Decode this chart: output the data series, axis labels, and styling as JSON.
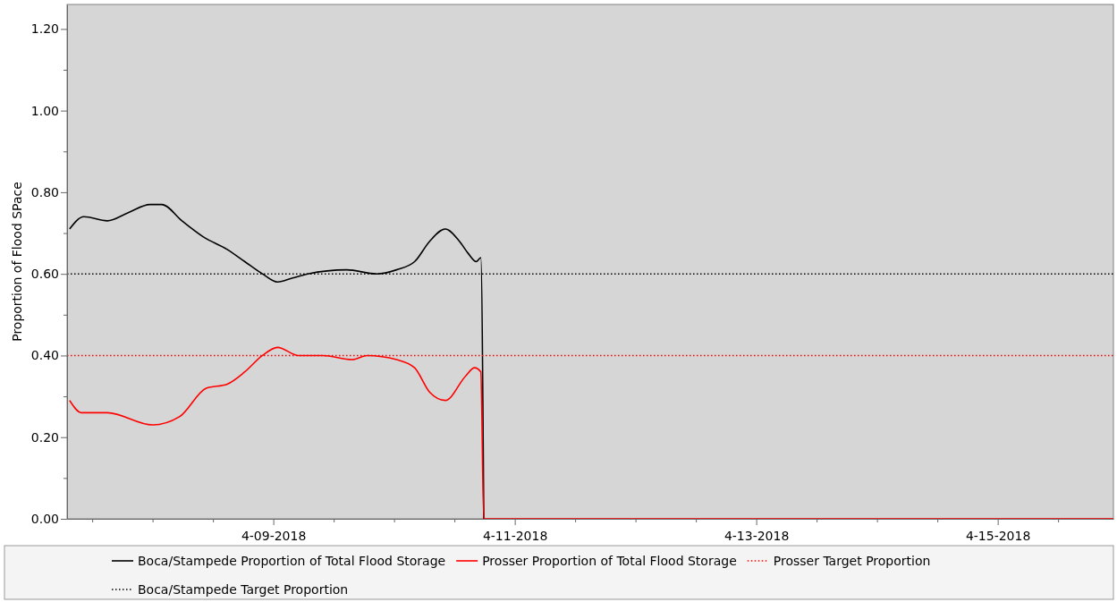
{
  "chart_data": {
    "type": "line",
    "ylabel": "Proportion of Flood SPace",
    "xlim": [
      "2018-04-07T07:00",
      "2018-04-15T23:00"
    ],
    "xticks": [
      {
        "value": "2018-04-07T12:00",
        "label": null
      },
      {
        "value": "2018-04-08T00:00",
        "label": null
      },
      {
        "value": "2018-04-08T12:00",
        "label": null
      },
      {
        "value": "2018-04-09T00:00",
        "label": "4-09-2018"
      },
      {
        "value": "2018-04-09T12:00",
        "label": null
      },
      {
        "value": "2018-04-10T00:00",
        "label": null
      },
      {
        "value": "2018-04-10T12:00",
        "label": null
      },
      {
        "value": "2018-04-11T00:00",
        "label": "4-11-2018"
      },
      {
        "value": "2018-04-11T12:00",
        "label": null
      },
      {
        "value": "2018-04-12T00:00",
        "label": null
      },
      {
        "value": "2018-04-12T12:00",
        "label": null
      },
      {
        "value": "2018-04-13T00:00",
        "label": "4-13-2018"
      },
      {
        "value": "2018-04-13T12:00",
        "label": null
      },
      {
        "value": "2018-04-14T00:00",
        "label": null
      },
      {
        "value": "2018-04-14T12:00",
        "label": null
      },
      {
        "value": "2018-04-15T00:00",
        "label": "4-15-2018"
      },
      {
        "value": "2018-04-15T12:00",
        "label": null
      }
    ],
    "ylim": [
      0,
      1.26
    ],
    "yticks": [
      {
        "value": 0,
        "label": "0.00"
      },
      {
        "value": 0.1,
        "label": null
      },
      {
        "value": 0.2,
        "label": "0.20"
      },
      {
        "value": 0.3,
        "label": null
      },
      {
        "value": 0.4,
        "label": "0.40"
      },
      {
        "value": 0.5,
        "label": null
      },
      {
        "value": 0.6,
        "label": "0.60"
      },
      {
        "value": 0.7,
        "label": null
      },
      {
        "value": 0.8,
        "label": "0.80"
      },
      {
        "value": 0.9,
        "label": null
      },
      {
        "value": 1.0,
        "label": "1.00"
      },
      {
        "value": 1.1,
        "label": null
      },
      {
        "value": 1.2,
        "label": "1.20"
      }
    ],
    "grid": false,
    "legend": "bottom",
    "marker": "none",
    "series": [
      {
        "name": "Boca/Stampede Proportion of Total Flood Storage",
        "color": "#000000",
        "line_style": "solid",
        "x": [
          "2018-04-07T07:30",
          "2018-04-07T10:20",
          "2018-04-07T15:00",
          "2018-04-07T19:10",
          "2018-04-07T23:30",
          "2018-04-08T01:50",
          "2018-04-08T05:50",
          "2018-04-08T10:10",
          "2018-04-08T14:50",
          "2018-04-08T18:20",
          "2018-04-08T21:50",
          "2018-04-09T00:50",
          "2018-04-09T03:50",
          "2018-04-09T06:50",
          "2018-04-09T14:35",
          "2018-04-09T20:30",
          "2018-04-10T00:30",
          "2018-04-10T04:05",
          "2018-04-10T07:05",
          "2018-04-10T10:10",
          "2018-04-10T13:00",
          "2018-04-10T14:45",
          "2018-04-10T16:20",
          "2018-04-10T17:15",
          "2018-04-10T17:50"
        ],
        "values": [
          0.71,
          0.74,
          0.73,
          0.75,
          0.77,
          0.77,
          0.73,
          0.69,
          0.66,
          0.63,
          0.6,
          0.58,
          0.59,
          0.6,
          0.61,
          0.6,
          0.61,
          0.63,
          0.68,
          0.71,
          0.68,
          0.65,
          0.63,
          0.64,
          0
        ]
      },
      {
        "name": "Prosser Proportion of Total Flood Storage",
        "color": "#ff0000",
        "line_style": "solid",
        "x": [
          "2018-04-07T07:30",
          "2018-04-07T09:50",
          "2018-04-07T15:00",
          "2018-04-08T00:00",
          "2018-04-08T05:20",
          "2018-04-08T10:40",
          "2018-04-08T14:50",
          "2018-04-08T18:20",
          "2018-04-08T21:50",
          "2018-04-09T00:50",
          "2018-04-09T05:00",
          "2018-04-09T09:50",
          "2018-04-09T15:40",
          "2018-04-09T18:40",
          "2018-04-10T00:30",
          "2018-04-10T04:05",
          "2018-04-10T07:05",
          "2018-04-10T10:10",
          "2018-04-10T14:15",
          "2018-04-10T16:00",
          "2018-04-10T17:15",
          "2018-04-10T17:50",
          "2018-04-15T23:00"
        ],
        "values": [
          0.29,
          0.26,
          0.26,
          0.23,
          0.25,
          0.32,
          0.33,
          0.36,
          0.4,
          0.42,
          0.4,
          0.4,
          0.39,
          0.4,
          0.39,
          0.37,
          0.31,
          0.29,
          0.35,
          0.37,
          0.36,
          0,
          0
        ]
      },
      {
        "name": "Prosser Target Proportion",
        "color": "#ff0000",
        "line_style": "dotted",
        "x": [
          "2018-04-07T07:00",
          "2018-04-15T23:00"
        ],
        "values": [
          0.4,
          0.4
        ]
      },
      {
        "name": "Boca/Stampede Target Proportion",
        "color": "#000000",
        "line_style": "dotted",
        "x": [
          "2018-04-07T07:00",
          "2018-04-15T23:00"
        ],
        "values": [
          0.6,
          0.6
        ]
      }
    ]
  }
}
